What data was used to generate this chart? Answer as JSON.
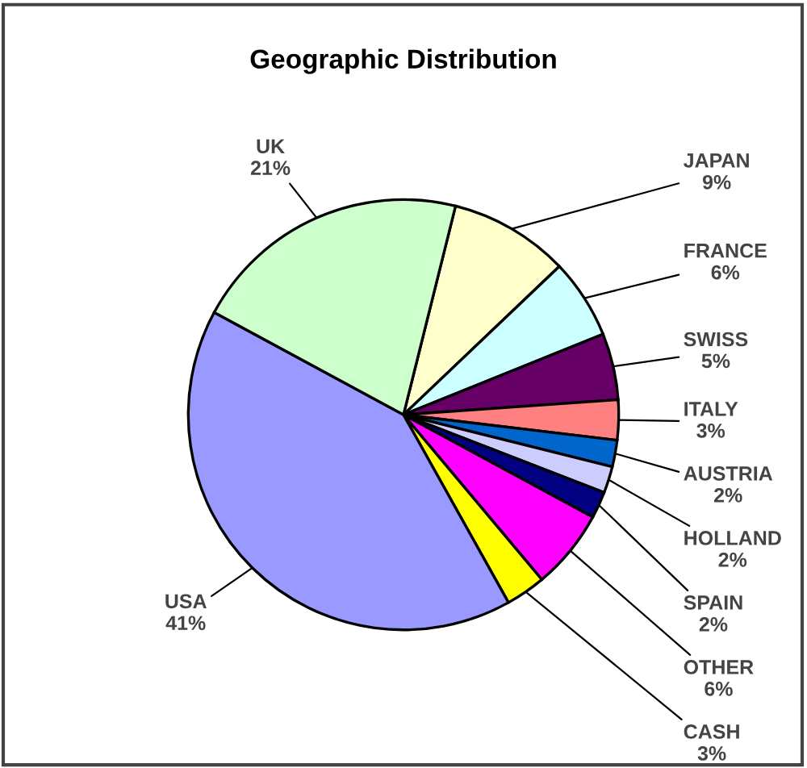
{
  "chart_data": {
    "type": "pie",
    "title": "Geographic Distribution",
    "categories": [
      "JAPAN",
      "FRANCE",
      "SWISS",
      "ITALY",
      "AUSTRIA",
      "HOLLAND",
      "SPAIN",
      "OTHER",
      "CASH",
      "USA",
      "UK"
    ],
    "values": [
      9,
      6,
      5,
      3,
      2,
      2,
      2,
      6,
      3,
      41,
      21
    ],
    "value_labels": [
      "9%",
      "6%",
      "5%",
      "3%",
      "2%",
      "2%",
      "2%",
      "6%",
      "3%",
      "41%",
      "21%"
    ],
    "colors": [
      "#ffffcc",
      "#ccffff",
      "#660066",
      "#ff8080",
      "#0066cc",
      "#ccccff",
      "#000080",
      "#ff00ff",
      "#ffff00",
      "#9999ff",
      "#ccffcc"
    ]
  }
}
